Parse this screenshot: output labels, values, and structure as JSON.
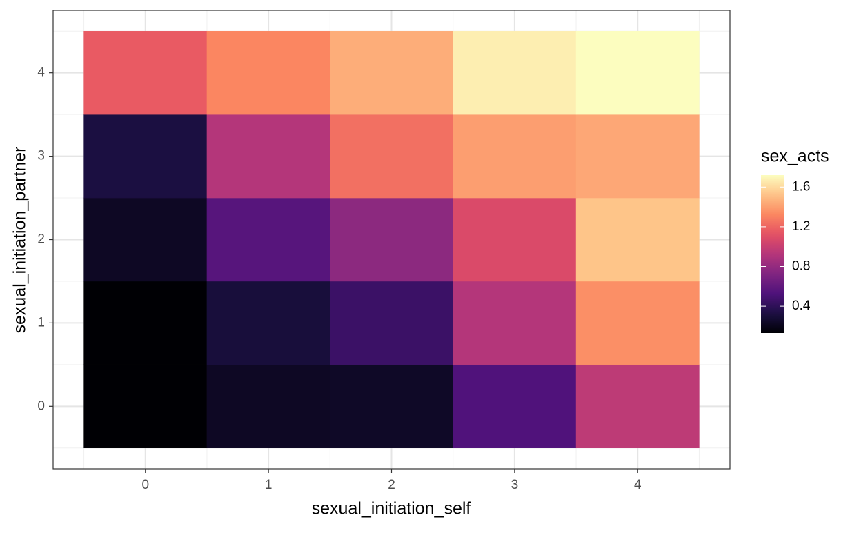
{
  "chart_data": {
    "type": "heatmap",
    "x_label": "sexual_initiation_self",
    "y_label": "sexual_initiation_partner",
    "x": [
      0,
      1,
      2,
      3,
      4
    ],
    "y": [
      0,
      1,
      2,
      3,
      4
    ],
    "values": [
      [
        0.13,
        0.23,
        0.24,
        0.53,
        0.96
      ],
      [
        0.13,
        0.3,
        0.45,
        0.92,
        1.35
      ],
      [
        0.23,
        0.56,
        0.77,
        1.08,
        1.53
      ],
      [
        0.32,
        0.92,
        1.24,
        1.4,
        1.43
      ],
      [
        1.16,
        1.32,
        1.45,
        1.67,
        1.72
      ]
    ],
    "xlim": [
      -0.75,
      4.75
    ],
    "ylim": [
      -0.75,
      4.75
    ],
    "xticks": [
      0,
      1,
      2,
      3,
      4
    ],
    "yticks": [
      0,
      1,
      2,
      3,
      4
    ],
    "xminor": [
      -0.5,
      0.5,
      1.5,
      2.5,
      3.5,
      4.5
    ],
    "yminor": [
      -0.5,
      0.5,
      1.5,
      2.5,
      3.5,
      4.5
    ],
    "grid": true,
    "colormap": "magma",
    "legend_title": "sex_acts",
    "clim": [
      0.13,
      1.72
    ],
    "cticks": [
      0.4,
      0.8,
      1.2,
      1.6
    ]
  }
}
